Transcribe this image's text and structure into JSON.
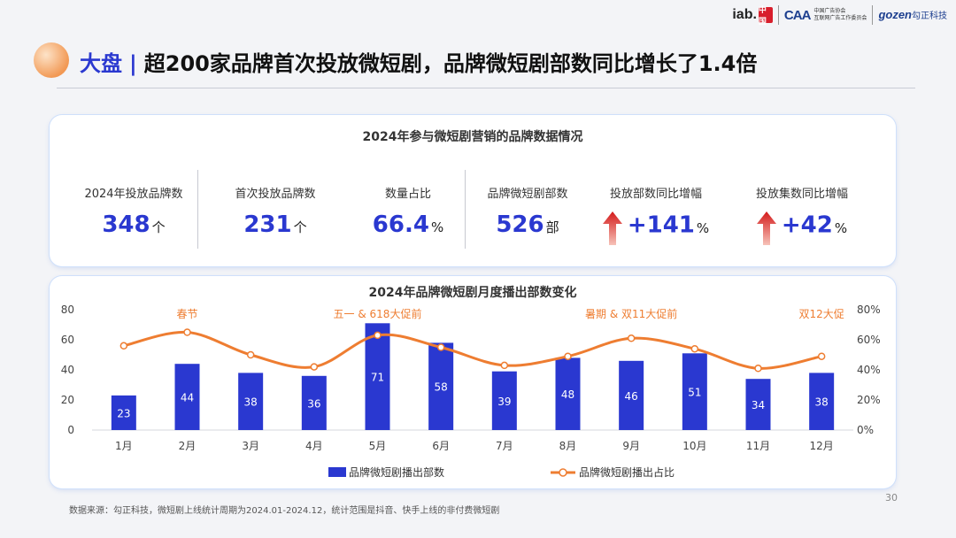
{
  "logos": {
    "iab": "iab.",
    "iab_seal": "中国",
    "caa": "CAA",
    "caa_text_1": "中国广告协会",
    "caa_text_2": "互联网广告工作委员会",
    "gozen": "gozen",
    "gozen_cn": "勾正科技"
  },
  "title": {
    "prefix": "大盘",
    "separator": "|",
    "text": "超200家品牌首次投放微短剧，品牌微短剧部数同比增长了1.4倍"
  },
  "summary": {
    "title": "2024年参与微短剧营销的品牌数据情况",
    "stats": [
      {
        "label": "2024年投放品牌数",
        "value": "348",
        "unit": "个"
      },
      {
        "label": "首次投放品牌数",
        "value": "231",
        "unit": "个"
      },
      {
        "label": "数量占比",
        "value": "66.4",
        "unit": "%"
      },
      {
        "label": "品牌微短剧部数",
        "value": "526",
        "unit": "部"
      },
      {
        "label": "投放部数同比增幅",
        "value": "+141",
        "unit": "%",
        "arrow_icon": "up-arrow-icon"
      },
      {
        "label": "投放集数同比增幅",
        "value": "+42",
        "unit": "%",
        "arrow_icon": "up-arrow-icon"
      }
    ]
  },
  "chart_data": {
    "type": "bar",
    "title": "2024年品牌微短剧月度播出部数变化",
    "categories": [
      "1月",
      "2月",
      "3月",
      "4月",
      "5月",
      "6月",
      "7月",
      "8月",
      "9月",
      "10月",
      "11月",
      "12月"
    ],
    "series": [
      {
        "name": "品牌微短剧播出部数",
        "type": "bar",
        "axis": "left",
        "values": [
          23,
          44,
          38,
          36,
          71,
          58,
          39,
          48,
          46,
          51,
          34,
          38
        ],
        "color": "#2a38d0"
      },
      {
        "name": "品牌微短剧播出占比",
        "type": "line",
        "axis": "right",
        "values": [
          56,
          65,
          50,
          42,
          63,
          55,
          43,
          49,
          61,
          54,
          41,
          49
        ],
        "color": "#ee7d31"
      }
    ],
    "yaxis_left": {
      "ticks": [
        "0",
        "20",
        "40",
        "60",
        "80"
      ],
      "ylim": [
        0,
        80
      ]
    },
    "yaxis_right": {
      "ticks": [
        "0%",
        "20%",
        "40%",
        "60%",
        "80%"
      ],
      "ylim": [
        0,
        80
      ]
    },
    "annotations": [
      {
        "text": "春节",
        "x": "2月"
      },
      {
        "text": "五一 & 618大促前",
        "x": "5月"
      },
      {
        "text": "暑期 & 双11大促前",
        "x": "9月"
      },
      {
        "text": "双12大促",
        "x": "12月"
      }
    ],
    "annotation_color": "#ee7d31",
    "legend": "bottom"
  },
  "footer": {
    "source": "数据来源：勾正科技，微短剧上线统计周期为2024.01-2024.12，统计范围是抖音、快手上线的非付费微短剧",
    "page": "30"
  }
}
